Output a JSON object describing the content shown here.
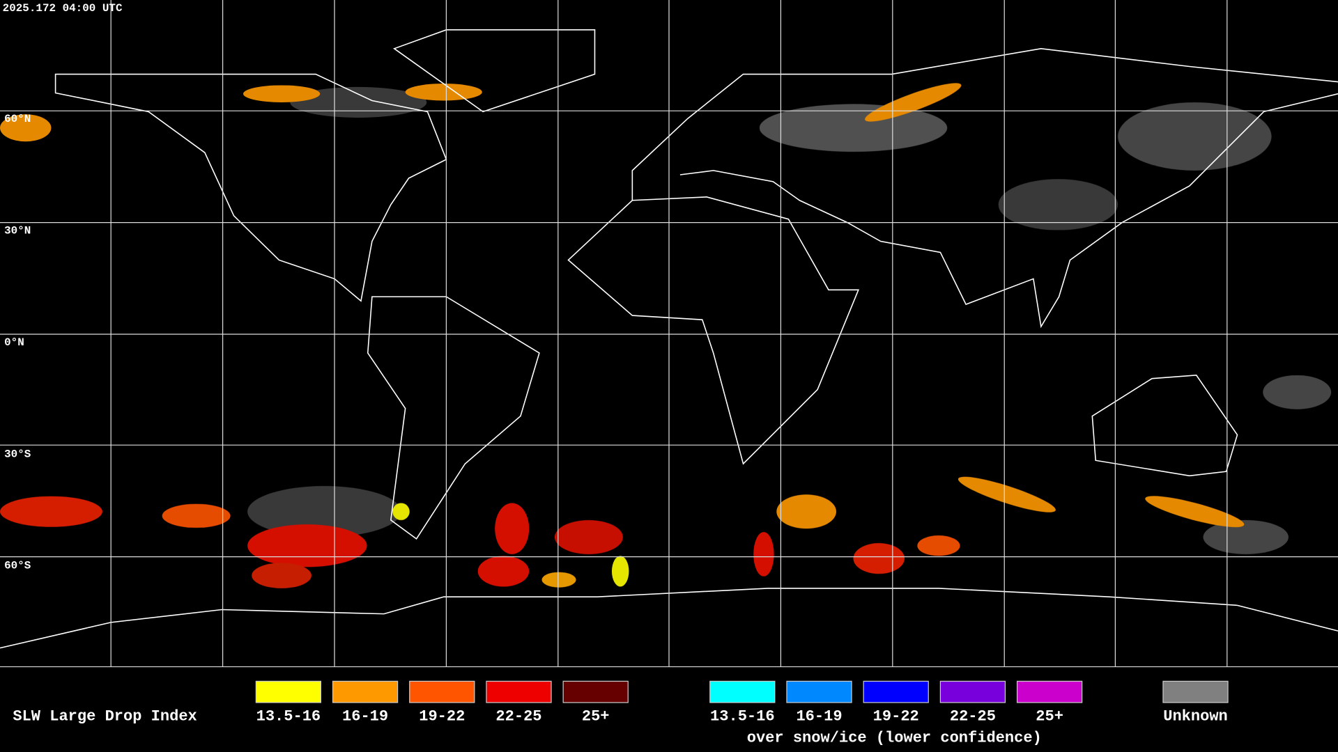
{
  "timestamp": "2025.172 04:00 UTC",
  "latitude_labels": [
    "60°N",
    "30°N",
    "0°N",
    "30°S",
    "60°S"
  ],
  "legend": {
    "title": "SLW Large Drop Index",
    "groups": [
      {
        "items": [
          {
            "label": "13.5-16",
            "color": "#ffff00"
          },
          {
            "label": "16-19",
            "color": "#ff9900"
          },
          {
            "label": "19-22",
            "color": "#ff5500"
          },
          {
            "label": "22-25",
            "color": "#ee0000"
          },
          {
            "label": "25+",
            "color": "#660000"
          }
        ]
      },
      {
        "items": [
          {
            "label": "13.5-16",
            "color": "#00ffff"
          },
          {
            "label": "16-19",
            "color": "#0088ff"
          },
          {
            "label": "19-22",
            "color": "#0000ff"
          },
          {
            "label": "22-25",
            "color": "#7700dd"
          },
          {
            "label": "25+",
            "color": "#cc00cc"
          }
        ],
        "note": "over snow/ice (lower confidence)"
      },
      {
        "items": [
          {
            "label": "Unknown",
            "color": "#808080"
          }
        ]
      }
    ]
  }
}
